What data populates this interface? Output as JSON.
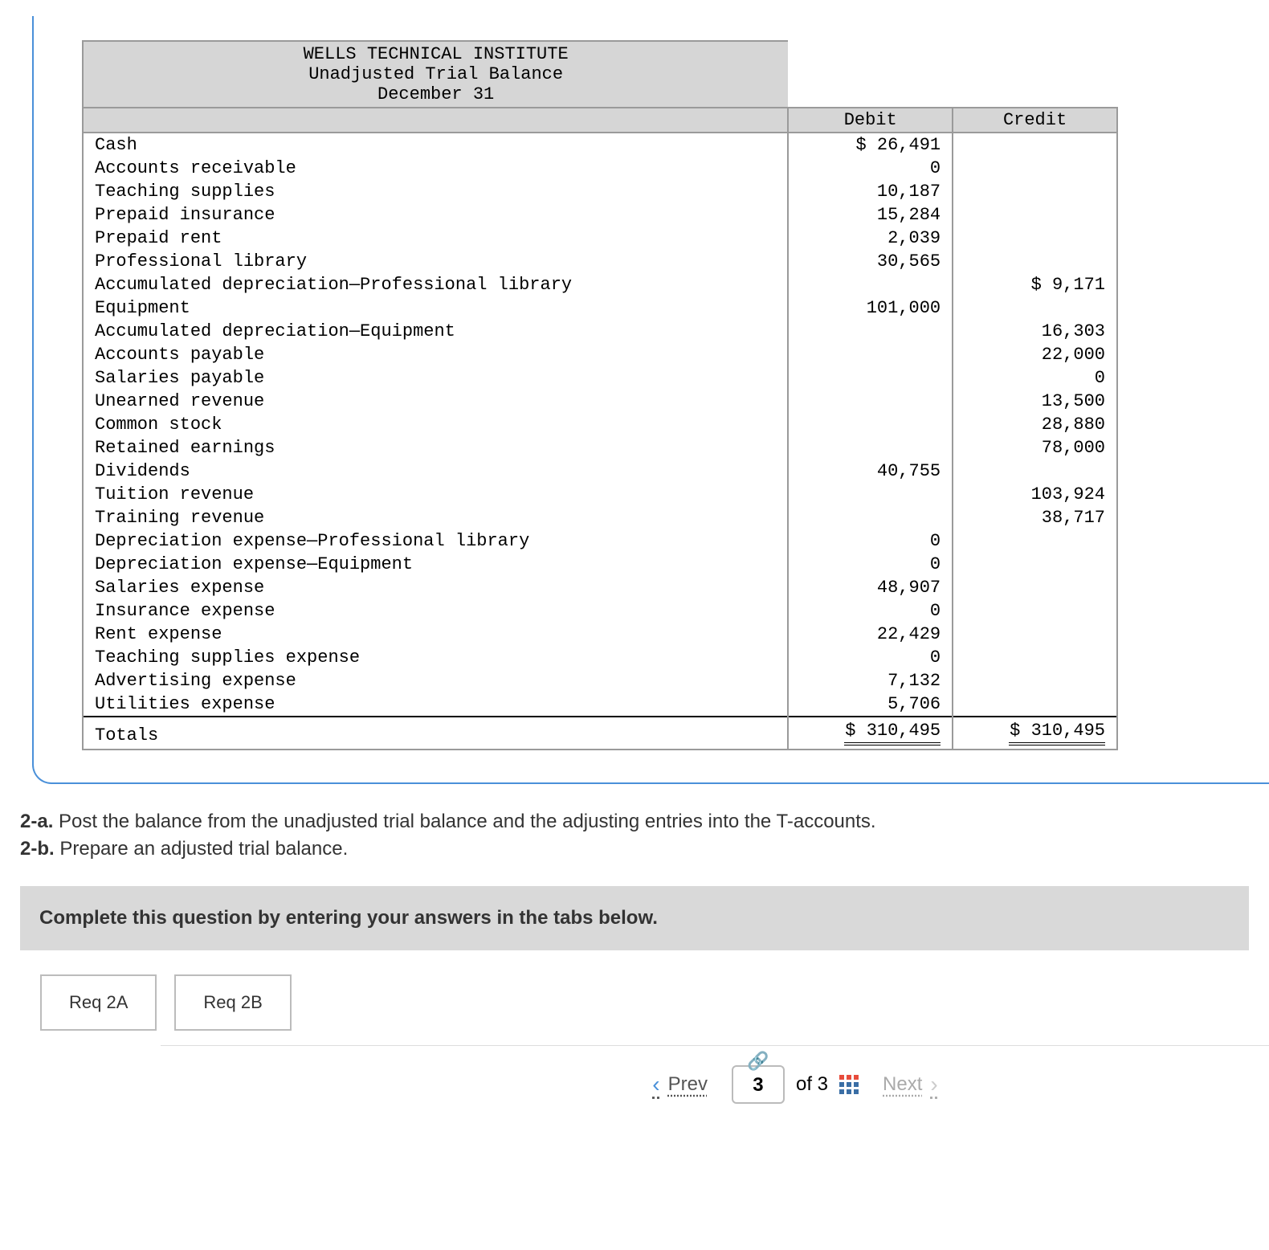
{
  "trial_balance": {
    "title_lines": [
      "WELLS TECHNICAL INSTITUTE",
      "Unadjusted Trial Balance",
      "December 31"
    ],
    "col_headers": [
      "Debit",
      "Credit"
    ],
    "rows": [
      {
        "account": "Cash",
        "debit": "$ 26,491",
        "credit": ""
      },
      {
        "account": "Accounts receivable",
        "debit": "0",
        "credit": ""
      },
      {
        "account": "Teaching supplies",
        "debit": "10,187",
        "credit": ""
      },
      {
        "account": "Prepaid insurance",
        "debit": "15,284",
        "credit": ""
      },
      {
        "account": "Prepaid rent",
        "debit": "2,039",
        "credit": ""
      },
      {
        "account": "Professional library",
        "debit": "30,565",
        "credit": ""
      },
      {
        "account": "Accumulated depreciation—Professional library",
        "debit": "",
        "credit": "$ 9,171"
      },
      {
        "account": "Equipment",
        "debit": "101,000",
        "credit": ""
      },
      {
        "account": "Accumulated depreciation—Equipment",
        "debit": "",
        "credit": "16,303"
      },
      {
        "account": "Accounts payable",
        "debit": "",
        "credit": "22,000"
      },
      {
        "account": "Salaries payable",
        "debit": "",
        "credit": "0"
      },
      {
        "account": "Unearned revenue",
        "debit": "",
        "credit": "13,500"
      },
      {
        "account": "Common stock",
        "debit": "",
        "credit": "28,880"
      },
      {
        "account": "Retained earnings",
        "debit": "",
        "credit": "78,000"
      },
      {
        "account": "Dividends",
        "debit": "40,755",
        "credit": ""
      },
      {
        "account": "Tuition revenue",
        "debit": "",
        "credit": "103,924"
      },
      {
        "account": "Training revenue",
        "debit": "",
        "credit": "38,717"
      },
      {
        "account": "Depreciation expense—Professional library",
        "debit": "0",
        "credit": ""
      },
      {
        "account": "Depreciation expense—Equipment",
        "debit": "0",
        "credit": ""
      },
      {
        "account": "Salaries expense",
        "debit": "48,907",
        "credit": ""
      },
      {
        "account": "Insurance expense",
        "debit": "0",
        "credit": ""
      },
      {
        "account": "Rent expense",
        "debit": "22,429",
        "credit": ""
      },
      {
        "account": "Teaching supplies expense",
        "debit": "0",
        "credit": ""
      },
      {
        "account": "Advertising expense",
        "debit": "7,132",
        "credit": ""
      },
      {
        "account": "Utilities expense",
        "debit": "5,706",
        "credit": ""
      }
    ],
    "totals": {
      "label": "Totals",
      "debit": "$ 310,495",
      "credit": "$ 310,495"
    }
  },
  "instructions": {
    "a_label": "2-a.",
    "a_text": "Post the balance from the unadjusted trial balance and the adjusting entries into the T-accounts.",
    "b_label": "2-b.",
    "b_text": "Prepare an adjusted trial balance."
  },
  "complete_bar": "Complete this question by entering your answers in the tabs below.",
  "tabs": {
    "a": "Req 2A",
    "b": "Req 2B"
  },
  "pager": {
    "prev": "Prev",
    "next": "Next",
    "current": "3",
    "of_label": "of 3"
  }
}
